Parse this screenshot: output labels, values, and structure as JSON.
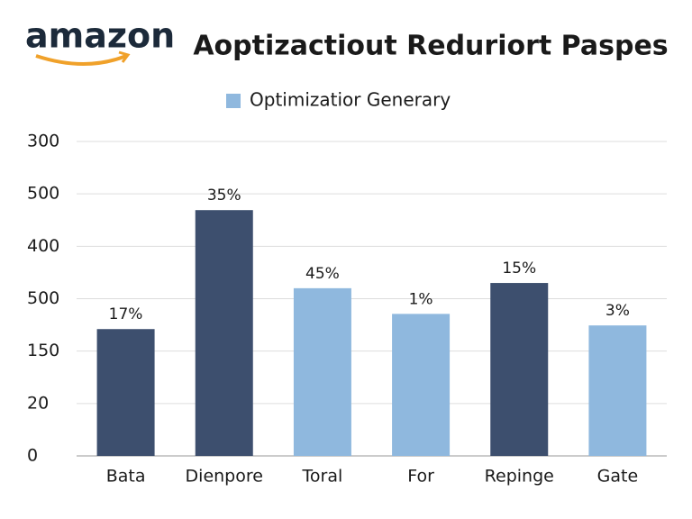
{
  "logo": {
    "text": "amazon"
  },
  "chart_data": {
    "type": "bar",
    "title": "Aoptizactiout Reduriort Paspes",
    "legend": {
      "label": "Optimizatior Generary",
      "color": "#8fb8de"
    },
    "categories": [
      "Bata",
      "Dienpore",
      "Toral",
      "For",
      "Repinge",
      "Gate"
    ],
    "values": [
      2.42,
      4.69,
      3.2,
      2.71,
      3.3,
      2.49
    ],
    "bar_labels": [
      "17%",
      "35%",
      "45%",
      "1%",
      "15%",
      "3%"
    ],
    "colors": [
      "#3d4f6e",
      "#3d4f6e",
      "#8fb8de",
      "#8fb8de",
      "#3d4f6e",
      "#8fb8de"
    ],
    "ylim": [
      0,
      6
    ],
    "yticks": [
      {
        "value": 0,
        "label": "0"
      },
      {
        "value": 1,
        "label": "20"
      },
      {
        "value": 2,
        "label": "150"
      },
      {
        "value": 3,
        "label": "500"
      },
      {
        "value": 4,
        "label": "400"
      },
      {
        "value": 5,
        "label": "500"
      },
      {
        "value": 6,
        "label": "300"
      }
    ],
    "grid": true
  }
}
